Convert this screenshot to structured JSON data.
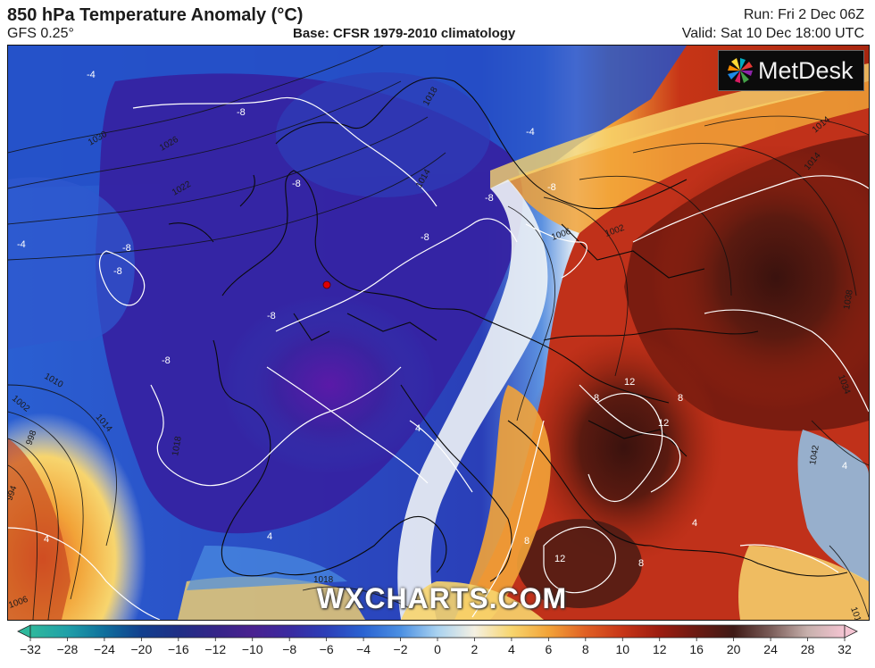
{
  "header": {
    "title": "850 hPa Temperature Anomaly (°C)",
    "model": "GFS 0.25°",
    "base": "Base: CFSR 1979-2010 climatology",
    "run": "Run: Fri 2 Dec 06Z",
    "valid": "Valid: Sat 10 Dec 18:00 UTC"
  },
  "logo": {
    "text": "MetDesk",
    "icon": "pinwheel-icon"
  },
  "watermark": "WXCHARTS.COM",
  "colorbar": {
    "ticks": [
      "-32",
      "-28",
      "-24",
      "-20",
      "-16",
      "-12",
      "-10",
      "-8",
      "-6",
      "-4",
      "-2",
      "0",
      "2",
      "4",
      "6",
      "8",
      "10",
      "12",
      "16",
      "20",
      "24",
      "28",
      "32"
    ],
    "colors": [
      "#2fb89c",
      "#1fa0a8",
      "#0f6f9c",
      "#123f8e",
      "#1f2f86",
      "#352588",
      "#4a2190",
      "#3a2aa0",
      "#2c3fb8",
      "#2a63d2",
      "#4b8fe2",
      "#a9d2f0",
      "#f4f0e2",
      "#f7d56e",
      "#f2a338",
      "#e06024",
      "#c73517",
      "#9c1c10",
      "#6b1a12",
      "#3f1a16",
      "#7a5c58",
      "#c7b0ac",
      "#f4c4d2"
    ]
  },
  "map": {
    "pressure_labels": [
      "-4",
      "-8",
      "-8",
      "-8",
      "-8",
      "-8",
      "-8",
      "-8",
      "-8",
      "-8",
      "-4",
      "4",
      "4",
      "4",
      "8",
      "8",
      "8",
      "8",
      "12",
      "12",
      "12",
      "4",
      "4"
    ],
    "isobar_labels": [
      "1030",
      "1026",
      "1022",
      "1018",
      "1014",
      "1010",
      "1006",
      "1002",
      "998",
      "994",
      "1006",
      "1014",
      "1018",
      "1018",
      "1006",
      "1002",
      "1014",
      "1014",
      "1038",
      "1034",
      "1042",
      "1018",
      "1014",
      "1010",
      "1010",
      "1018"
    ]
  },
  "legend_colors": {
    "cold_core": "#3a1f9a",
    "warm_core": "#3d1410",
    "neutral": "#f2efe6"
  }
}
